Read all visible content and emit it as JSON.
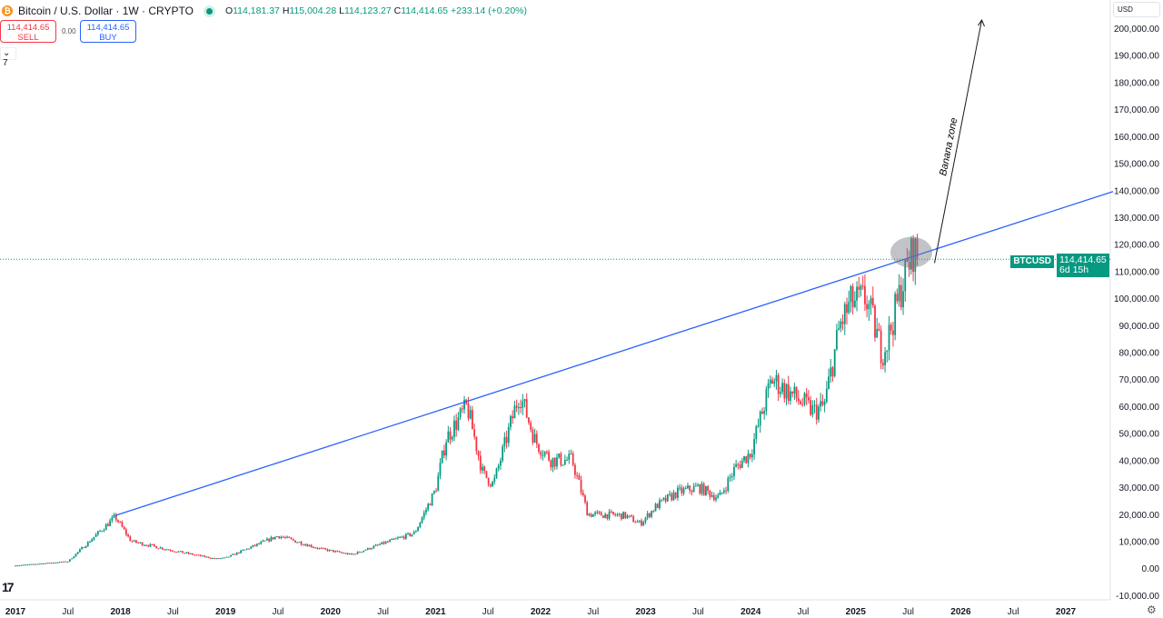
{
  "header": {
    "symbol_title": "Bitcoin / U.S. Dollar · 1W · CRYPTO",
    "open_label": "O",
    "open": "114,181.37",
    "high_label": "H",
    "high": "115,004.28",
    "low_label": "L",
    "low": "114,123.27",
    "close_label": "C",
    "close": "114,414.65",
    "change": "+233.14 (+0.20%)"
  },
  "trade": {
    "sell_price": "114,414.65",
    "sell_label": "SELL",
    "spread": "0.00",
    "buy_price": "114,414.65",
    "buy_label": "BUY"
  },
  "indicators_toggle": "7",
  "currency": "USD",
  "price_label": {
    "symbol": "BTCUSD",
    "price": "114,414.65",
    "countdown": "6d 15h"
  },
  "logo_text": "17",
  "colors": {
    "up": "#089981",
    "down": "#f23645",
    "trendline": "#2962ff"
  },
  "chart_data": {
    "type": "candlestick",
    "title": "Bitcoin / U.S. Dollar · 1W · CRYPTO",
    "ylim": [
      -10000,
      200000
    ],
    "xlim": [
      2017.0,
      2027.6
    ],
    "y_ticks": [
      "200,000.00",
      "190,000.00",
      "180,000.00",
      "170,000.00",
      "160,000.00",
      "150,000.00",
      "140,000.00",
      "130,000.00",
      "120,000.00",
      "110,000.00",
      "100,000.00",
      "90,000.00",
      "80,000.00",
      "70,000.00",
      "60,000.00",
      "50,000.00",
      "40,000.00",
      "30,000.00",
      "20,000.00",
      "10,000.00",
      "0.00",
      "-10,000.00"
    ],
    "y_tick_values": [
      200000,
      190000,
      180000,
      170000,
      160000,
      150000,
      140000,
      130000,
      120000,
      110000,
      100000,
      90000,
      80000,
      70000,
      60000,
      50000,
      40000,
      30000,
      20000,
      10000,
      0,
      -10000
    ],
    "x_ticks": [
      {
        "label": "2017",
        "t": 2017.0
      },
      {
        "label": "Jul",
        "t": 2017.5
      },
      {
        "label": "2018",
        "t": 2018.0
      },
      {
        "label": "Jul",
        "t": 2018.5
      },
      {
        "label": "2019",
        "t": 2019.0
      },
      {
        "label": "Jul",
        "t": 2019.5
      },
      {
        "label": "2020",
        "t": 2020.0
      },
      {
        "label": "Jul",
        "t": 2020.5
      },
      {
        "label": "2021",
        "t": 2021.0
      },
      {
        "label": "Jul",
        "t": 2021.5
      },
      {
        "label": "2022",
        "t": 2022.0
      },
      {
        "label": "Jul",
        "t": 2022.5
      },
      {
        "label": "2023",
        "t": 2023.0
      },
      {
        "label": "Jul",
        "t": 2023.5
      },
      {
        "label": "2024",
        "t": 2024.0
      },
      {
        "label": "Jul",
        "t": 2024.5
      },
      {
        "label": "2025",
        "t": 2025.0
      },
      {
        "label": "Jul",
        "t": 2025.5
      },
      {
        "label": "2026",
        "t": 2026.0
      },
      {
        "label": "Jul",
        "t": 2026.5
      },
      {
        "label": "2027",
        "t": 2027.0
      }
    ],
    "price_path": [
      [
        2017.0,
        1000
      ],
      [
        2017.5,
        2500
      ],
      [
        2017.95,
        19000
      ],
      [
        2018.1,
        10000
      ],
      [
        2018.5,
        6500
      ],
      [
        2018.9,
        3500
      ],
      [
        2019.0,
        3800
      ],
      [
        2019.5,
        12000
      ],
      [
        2019.9,
        7200
      ],
      [
        2020.2,
        5000
      ],
      [
        2020.5,
        9200
      ],
      [
        2020.8,
        13000
      ],
      [
        2021.0,
        29000
      ],
      [
        2021.1,
        48000
      ],
      [
        2021.3,
        60000
      ],
      [
        2021.45,
        35000
      ],
      [
        2021.55,
        31000
      ],
      [
        2021.8,
        65000
      ],
      [
        2021.95,
        47000
      ],
      [
        2022.1,
        40000
      ],
      [
        2022.3,
        40000
      ],
      [
        2022.45,
        20000
      ],
      [
        2022.8,
        19500
      ],
      [
        2022.95,
        16500
      ],
      [
        2023.1,
        23000
      ],
      [
        2023.3,
        28000
      ],
      [
        2023.5,
        30000
      ],
      [
        2023.7,
        26000
      ],
      [
        2023.85,
        37000
      ],
      [
        2024.0,
        43000
      ],
      [
        2024.2,
        70000
      ],
      [
        2024.6,
        58000
      ],
      [
        2024.7,
        60000
      ],
      [
        2024.85,
        90000
      ],
      [
        2024.95,
        98000
      ],
      [
        2025.1,
        100000
      ],
      [
        2025.25,
        80000
      ],
      [
        2025.3,
        84000
      ],
      [
        2025.45,
        106000
      ],
      [
        2025.55,
        118000
      ],
      [
        2025.6,
        114414.65
      ]
    ],
    "last_price": 114414.65,
    "trendline": [
      [
        2017.95,
        19500
      ],
      [
        2027.45,
        139500
      ]
    ],
    "arrow": [
      [
        2025.75,
        113000
      ],
      [
        2026.2,
        203000
      ]
    ],
    "annotation": "Banana zone",
    "highlight_center": [
      2025.53,
      117000
    ]
  }
}
